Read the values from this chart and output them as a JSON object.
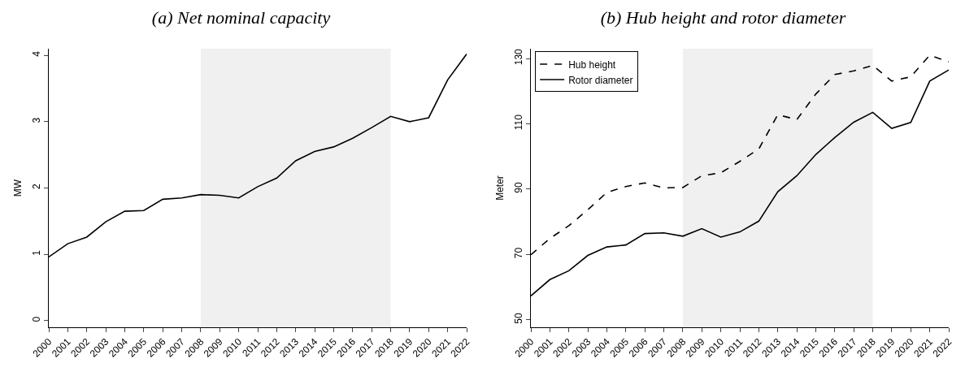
{
  "chart_data": [
    {
      "type": "line",
      "title": "(a) Net nominal capacity",
      "ylabel": "MW",
      "x": [
        2000,
        2001,
        2002,
        2003,
        2004,
        2005,
        2006,
        2007,
        2008,
        2009,
        2010,
        2011,
        2012,
        2013,
        2014,
        2015,
        2016,
        2017,
        2018,
        2019,
        2020,
        2021,
        2022
      ],
      "series": [
        {
          "color": "#000000",
          "line_style": "solid",
          "values": [
            0.96,
            1.16,
            1.26,
            1.49,
            1.65,
            1.66,
            1.83,
            1.85,
            1.9,
            1.89,
            1.85,
            2.02,
            2.15,
            2.41,
            2.55,
            2.62,
            2.75,
            2.91,
            3.08,
            3.0,
            3.06,
            3.63,
            4.02
          ]
        }
      ],
      "xlim": [
        2000,
        2022
      ],
      "xticks": [
        2000,
        2001,
        2002,
        2003,
        2004,
        2005,
        2006,
        2007,
        2008,
        2009,
        2010,
        2011,
        2012,
        2013,
        2014,
        2015,
        2016,
        2017,
        2018,
        2019,
        2020,
        2021,
        2022
      ],
      "ylim": [
        -0.1,
        4.1
      ],
      "yticks": [
        0,
        1,
        2,
        3,
        4
      ],
      "bands": [
        {
          "axis": "x",
          "from": 2008,
          "to": 2018,
          "color": "#f0f0f0"
        }
      ],
      "grid": false,
      "legend": false
    },
    {
      "type": "line",
      "title": "(b) Hub height and rotor diameter",
      "ylabel": "Meter",
      "x": [
        2000,
        2001,
        2002,
        2003,
        2004,
        2005,
        2006,
        2007,
        2008,
        2009,
        2010,
        2011,
        2012,
        2013,
        2014,
        2015,
        2016,
        2017,
        2018,
        2019,
        2020,
        2021,
        2022
      ],
      "series": [
        {
          "name": "Hub height",
          "color": "#000000",
          "line_style": "dashed",
          "values": [
            69.9,
            74.9,
            78.8,
            83.7,
            89.0,
            90.8,
            91.9,
            90.4,
            90.5,
            94.1,
            95.0,
            98.5,
            102.3,
            112.8,
            111.3,
            119.1,
            125.1,
            126.2,
            127.9,
            123.1,
            124.4,
            131.0,
            129.0
          ]
        },
        {
          "name": "Rotor diameter",
          "color": "#000000",
          "line_style": "solid",
          "values": [
            57.3,
            62.3,
            65.0,
            69.7,
            72.3,
            72.9,
            76.4,
            76.6,
            75.6,
            77.9,
            75.3,
            76.9,
            80.2,
            89.2,
            94.1,
            100.6,
            105.8,
            110.5,
            113.5,
            108.6,
            110.4,
            123.1,
            126.5
          ]
        }
      ],
      "xlim": [
        2000,
        2022
      ],
      "xticks": [
        2000,
        2001,
        2002,
        2003,
        2004,
        2005,
        2006,
        2007,
        2008,
        2009,
        2010,
        2011,
        2012,
        2013,
        2014,
        2015,
        2016,
        2017,
        2018,
        2019,
        2020,
        2021,
        2022
      ],
      "ylim": [
        47.7,
        133
      ],
      "yticks": [
        50,
        70,
        90,
        110,
        130
      ],
      "bands": [
        {
          "axis": "x",
          "from": 2008,
          "to": 2018,
          "color": "#f0f0f0"
        }
      ],
      "grid": false,
      "legend": "top left"
    }
  ]
}
